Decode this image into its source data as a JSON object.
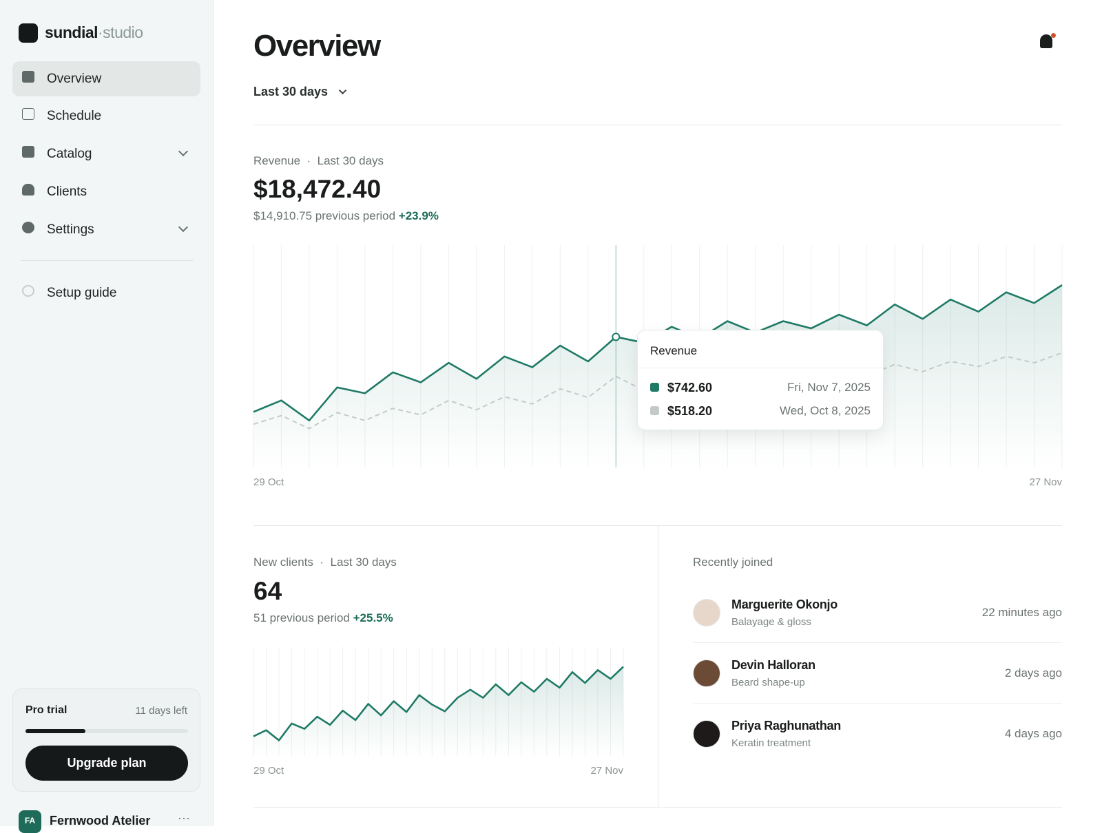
{
  "brand": {
    "name": "sundial",
    "suffix": "·studio"
  },
  "nav": [
    {
      "label": "Overview"
    },
    {
      "label": "Schedule"
    },
    {
      "label": "Catalog"
    },
    {
      "label": "Clients"
    },
    {
      "label": "Settings"
    }
  ],
  "setup_guide": "Setup guide",
  "trial": {
    "label": "Pro trial",
    "days_left": "11 days left",
    "button": "Upgrade plan"
  },
  "account": {
    "initials": "FA",
    "name": "Fernwood Atelier"
  },
  "header": {
    "title": "Overview",
    "period": "Last 30 days"
  },
  "revenue": {
    "label": "Revenue",
    "period": "Last 30 days",
    "total": "$18,472.40",
    "previous": "$14,910.75 previous period",
    "change": "+23.9%",
    "chart": {
      "type": "line",
      "categories": [
        "29 Oct",
        null,
        null,
        null,
        null,
        null,
        null,
        null,
        null,
        null,
        null,
        null,
        null,
        null,
        null,
        null,
        null,
        null,
        null,
        null,
        null,
        null,
        null,
        null,
        null,
        null,
        null,
        null,
        null,
        "27 Nov"
      ],
      "series": [
        {
          "color": "#1f7a66",
          "values": [
            316,
            381,
            267,
            455,
            422,
            541,
            484,
            595,
            504,
            631,
            570,
            693,
            603,
            742.6,
            709,
            800,
            734,
            832,
            767,
            832,
            791,
            869,
            808,
            927,
            845,
            955,
            886,
            996,
            935,
            1037
          ]
        },
        {
          "color": "#c3cbc8",
          "dashed": true,
          "values": [
            246,
            295,
            221,
            312,
            267,
            336,
            299,
            381,
            328,
            402,
            361,
            447,
            398,
            518.2,
            439,
            492,
            451,
            513,
            472,
            529,
            492,
            554,
            521,
            586,
            545,
            603,
            574,
            631,
            595,
            652
          ]
        }
      ]
    },
    "tooltip": {
      "title": "Revenue",
      "rows": [
        {
          "value": "$742.60",
          "date": "Fri, Nov 7, 2025"
        },
        {
          "value": "$518.20",
          "date": "Wed, Oct 8, 2025"
        }
      ]
    }
  },
  "clients": {
    "label": "New clients",
    "period": "Last 30 days",
    "total": "64",
    "previous": "51 previous period",
    "change": "+25.5%",
    "chart": {
      "type": "line",
      "categories": [
        "29 Oct",
        null,
        null,
        null,
        null,
        null,
        null,
        null,
        null,
        null,
        null,
        null,
        null,
        null,
        null,
        null,
        null,
        null,
        null,
        null,
        null,
        null,
        null,
        null,
        null,
        null,
        null,
        null,
        null,
        "27 Nov"
      ],
      "series": [
        {
          "color": "#1f7a66",
          "values": [
            2.9,
            3.8,
            2.3,
            4.8,
            4.0,
            5.8,
            4.6,
            6.7,
            5.3,
            7.7,
            6.0,
            8.1,
            6.5,
            9.0,
            7.6,
            6.6,
            8.6,
            9.8,
            8.6,
            10.6,
            9.0,
            10.9,
            9.5,
            11.4,
            10.1,
            12.4,
            10.8,
            12.7,
            11.4,
            13.2
          ]
        }
      ]
    }
  },
  "recent": {
    "title": "Recently joined",
    "items": [
      {
        "name": "Marguerite Okonjo",
        "service": "Balayage & gloss",
        "time": "22 minutes ago"
      },
      {
        "name": "Devin Halloran",
        "service": "Beard shape-up",
        "time": "2 days ago"
      },
      {
        "name": "Priya Raghunathan",
        "service": "Keratin treatment",
        "time": "4 days ago"
      }
    ]
  }
}
